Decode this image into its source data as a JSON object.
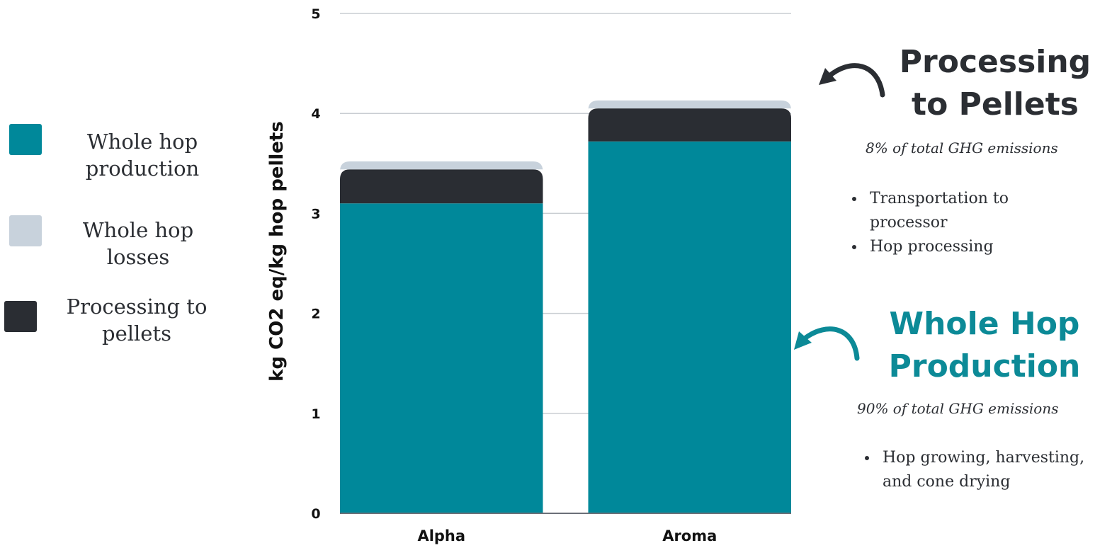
{
  "legend": [
    {
      "label_line1": "Whole hop",
      "label_line2": "production",
      "color": "#00889A"
    },
    {
      "label_line1": "Whole hop",
      "label_line2": "losses",
      "color": "#C8D2DC"
    },
    {
      "label_line1": "Processing to",
      "label_line2": "pellets",
      "color": "#2A2D33"
    }
  ],
  "chart_data": {
    "type": "bar",
    "stacked": true,
    "categories": [
      "Alpha",
      "Aroma"
    ],
    "series": [
      {
        "name": "Whole hop production",
        "color": "#00889A",
        "values": [
          3.1,
          3.72
        ]
      },
      {
        "name": "Processing to pellets",
        "color": "#2A2D33",
        "values": [
          0.34,
          0.33
        ]
      },
      {
        "name": "Whole hop losses",
        "color": "#C8D2DC",
        "values": [
          0.08,
          0.08
        ]
      }
    ],
    "ylabel": "kg CO2 eq/kg hop pellets",
    "xlabel": "",
    "ylim": [
      0,
      5
    ],
    "yticks": [
      "0",
      "1",
      "2",
      "3",
      "4",
      "5"
    ],
    "grid": true
  },
  "annotations": {
    "processing": {
      "title_line1": "Processing",
      "title_line2": "to Pellets",
      "subtitle": "8% of total GHG emissions",
      "bullets": [
        "Transportation to processor",
        "Hop processing"
      ]
    },
    "whole_hop": {
      "title_line1": "Whole Hop",
      "title_line2": "Production",
      "subtitle": "90% of total GHG emissions",
      "bullets": [
        "Hop growing, harvesting, and cone drying"
      ]
    }
  }
}
